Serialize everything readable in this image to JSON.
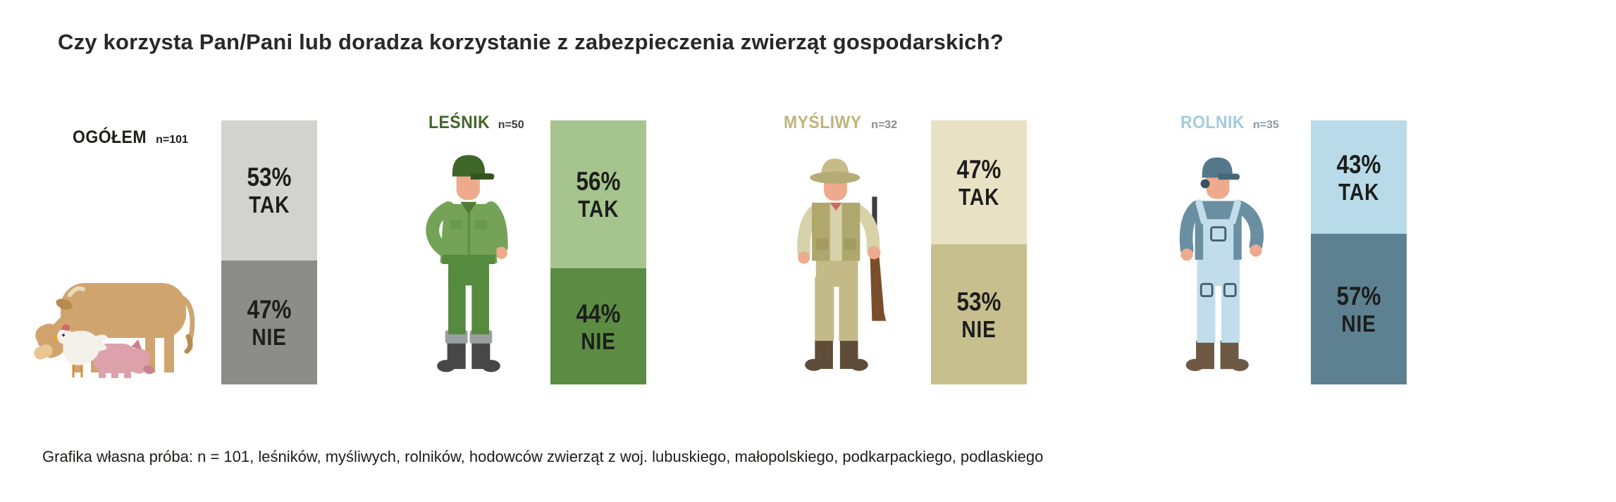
{
  "title": "Czy korzysta Pan/Pani lub doradza korzystanie z zabezpieczenia zwierząt gospodarskich?",
  "caption": "Grafika własna próba: n = 101, leśników, myśliwych, rolników, hodowców zwierząt z woj. lubuskiego, małopolskiego, podkarpackiego, podlaskiego",
  "chart_data": {
    "type": "bar",
    "subtype": "stacked-100pct-columns",
    "question": "Czy korzysta Pan/Pani lub doradza korzystanie z zabezpieczenia zwierząt gospodarskich?",
    "answer_labels": [
      "TAK",
      "NIE"
    ],
    "legend_position": "inside-bars",
    "groups": [
      {
        "label": "OGÓŁEM",
        "n_label": "n=101",
        "n": 101,
        "icon": "farm-animals",
        "yes_pct": 53,
        "no_pct": 47,
        "yes_value_label": "53%",
        "no_value_label": "47%",
        "yes_answer": "TAK",
        "no_answer": "NIE",
        "colors": {
          "label": "#1d1d1b",
          "n": "#1d1d1b",
          "yes": "#d2d2d1",
          "no": "#8c8c8b"
        }
      },
      {
        "label": "LEŚNIK",
        "n_label": "n=50",
        "n": 50,
        "icon": "forester",
        "yes_pct": 56,
        "no_pct": 44,
        "yes_value_label": "56%",
        "no_value_label": "44%",
        "yes_answer": "TAK",
        "no_answer": "NIE",
        "colors": {
          "label": "#44652a",
          "n": "#3a3a38",
          "yes": "#a6c48e",
          "no": "#5c8c43"
        }
      },
      {
        "label": "MYŚLIWY",
        "n_label": "n=32",
        "n": 32,
        "icon": "hunter",
        "yes_pct": 47,
        "no_pct": 53,
        "yes_value_label": "47%",
        "no_value_label": "53%",
        "yes_answer": "TAK",
        "no_answer": "NIE",
        "colors": {
          "label": "#bfb57b",
          "n": "#8a8a88",
          "yes": "#e8e1c4",
          "no": "#c8bf8e"
        }
      },
      {
        "label": "ROLNIK",
        "n_label": "n=35",
        "n": 35,
        "icon": "farmer",
        "yes_pct": 43,
        "no_pct": 57,
        "yes_value_label": "43%",
        "no_value_label": "57%",
        "yes_answer": "TAK",
        "no_answer": "NIE",
        "colors": {
          "label": "#a3cbdf",
          "n": "#8a9aa4",
          "yes": "#b9dbe9",
          "no": "#5d8191"
        }
      }
    ]
  }
}
